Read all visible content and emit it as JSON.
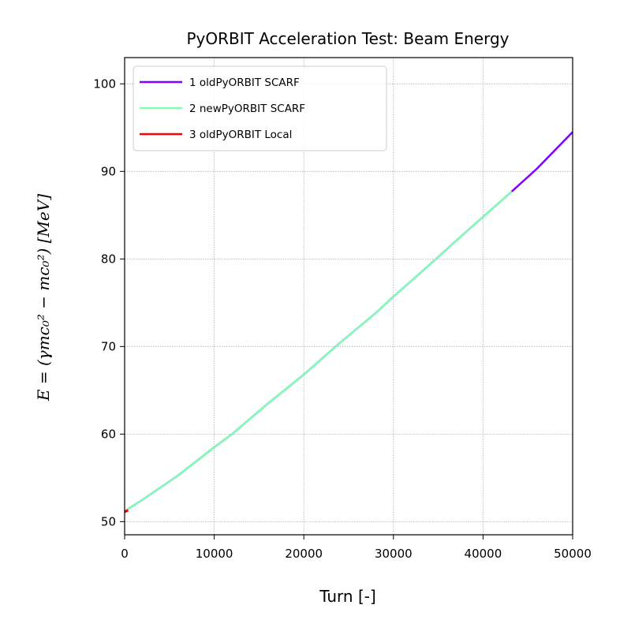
{
  "chart_data": {
    "type": "line",
    "title": "PyORBIT Acceleration Test: Beam Energy",
    "xlabel": "Turn [-]",
    "ylabel": "E = (γmc₀² − mc₀²) [MeV]",
    "xlim": [
      0,
      50000
    ],
    "ylim": [
      48.5,
      103
    ],
    "xticks": [
      0,
      10000,
      20000,
      30000,
      40000,
      50000
    ],
    "yticks": [
      50,
      60,
      70,
      80,
      90,
      100
    ],
    "grid": true,
    "legend_position": "top-left",
    "series": [
      {
        "name": "1 oldPyORBIT SCARF",
        "color": "#8000ff",
        "x": [
          0,
          2000,
          6000,
          10000,
          12000,
          16000,
          20000,
          24000,
          28000,
          30000,
          34000,
          38000,
          40000,
          43200,
          46000,
          50000
        ],
        "y": [
          51.2,
          52.5,
          55.3,
          58.5,
          60.0,
          63.5,
          66.8,
          70.4,
          73.8,
          75.7,
          79.3,
          83.0,
          84.8,
          87.7,
          90.3,
          94.5
        ]
      },
      {
        "name": "2 newPyORBIT SCARF",
        "color": "#80ffb4",
        "x": [
          0,
          2000,
          6000,
          10000,
          12000,
          16000,
          20000,
          24000,
          28000,
          30000,
          34000,
          38000,
          40000,
          43200
        ],
        "y": [
          51.2,
          52.5,
          55.3,
          58.5,
          60.0,
          63.5,
          66.8,
          70.4,
          73.8,
          75.7,
          79.3,
          83.0,
          84.8,
          87.7
        ]
      },
      {
        "name": "3 oldPyORBIT Local",
        "color": "#ff0000",
        "x": [
          0,
          400
        ],
        "y": [
          51.1,
          51.3
        ]
      }
    ]
  }
}
